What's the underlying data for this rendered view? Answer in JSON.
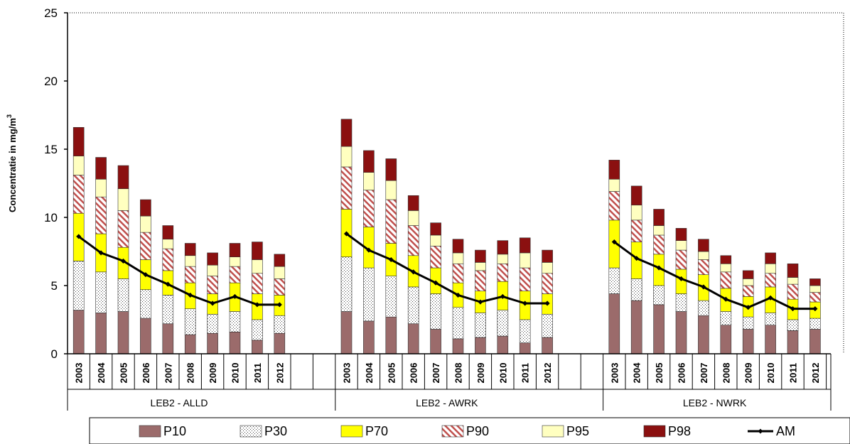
{
  "chart_data": {
    "type": "bar",
    "stacked": true,
    "ylabel": "Concentratie in mg/m",
    "ylabel_superscript": "3",
    "ylim": [
      0,
      25
    ],
    "yticks": [
      "0",
      "5",
      "10",
      "15",
      "20",
      "25"
    ],
    "groups": [
      {
        "label": "LEB2 - ALLD",
        "categories": [
          "2003",
          "2004",
          "2005",
          "2006",
          "2007",
          "2008",
          "2009",
          "2010",
          "2011",
          "2012"
        ],
        "P10": [
          3.2,
          3.0,
          3.1,
          2.6,
          2.2,
          1.4,
          1.5,
          1.6,
          1.0,
          1.5
        ],
        "P30": [
          6.8,
          6.0,
          5.5,
          4.7,
          4.3,
          3.3,
          2.9,
          3.1,
          2.5,
          2.8
        ],
        "P70": [
          10.3,
          8.8,
          7.8,
          6.9,
          6.1,
          5.2,
          4.4,
          5.2,
          4.4,
          4.3
        ],
        "P90": [
          13.1,
          11.5,
          10.5,
          8.9,
          7.7,
          6.4,
          5.7,
          6.4,
          5.9,
          5.5
        ],
        "P95": [
          14.5,
          12.8,
          12.1,
          10.1,
          8.4,
          7.2,
          6.5,
          7.1,
          6.9,
          6.4
        ],
        "P98": [
          16.6,
          14.4,
          13.8,
          11.3,
          9.4,
          8.1,
          7.4,
          8.1,
          8.2,
          7.3
        ],
        "AM": [
          8.6,
          7.4,
          6.8,
          5.8,
          5.1,
          4.3,
          3.7,
          4.2,
          3.6,
          3.6
        ]
      },
      {
        "label": "LEB2 - AWRK",
        "categories": [
          "2003",
          "2004",
          "2005",
          "2006",
          "2007",
          "2008",
          "2009",
          "2010",
          "2011",
          "2012"
        ],
        "P10": [
          3.1,
          2.4,
          2.7,
          2.2,
          1.8,
          1.1,
          1.2,
          1.3,
          0.8,
          1.2
        ],
        "P30": [
          7.1,
          6.3,
          5.7,
          4.9,
          4.4,
          3.4,
          3.0,
          3.2,
          2.5,
          2.9
        ],
        "P70": [
          10.6,
          9.3,
          8.1,
          7.2,
          6.3,
          5.2,
          4.6,
          5.3,
          4.6,
          4.4
        ],
        "P90": [
          13.7,
          12.0,
          11.3,
          9.4,
          7.9,
          6.6,
          6.1,
          6.6,
          6.3,
          5.9
        ],
        "P95": [
          15.2,
          13.3,
          12.7,
          10.5,
          8.7,
          7.4,
          6.7,
          7.3,
          7.4,
          6.7
        ],
        "P98": [
          17.2,
          14.9,
          14.3,
          11.6,
          9.6,
          8.4,
          7.6,
          8.3,
          8.5,
          7.6
        ],
        "AM": [
          8.8,
          7.6,
          6.9,
          6.0,
          5.2,
          4.3,
          3.8,
          4.2,
          3.7,
          3.7
        ]
      },
      {
        "label": "LEB2 - NWRK",
        "categories": [
          "2003",
          "2004",
          "2005",
          "2006",
          "2007",
          "2008",
          "2009",
          "2010",
          "2011",
          "2012"
        ],
        "P10": [
          4.4,
          3.9,
          3.6,
          3.1,
          2.8,
          2.1,
          1.8,
          2.1,
          1.7,
          1.8
        ],
        "P30": [
          6.3,
          5.5,
          5.0,
          4.4,
          3.9,
          3.1,
          2.7,
          3.0,
          2.5,
          2.6
        ],
        "P70": [
          9.8,
          8.2,
          7.3,
          6.2,
          5.8,
          4.8,
          4.2,
          4.9,
          4.0,
          3.8
        ],
        "P90": [
          11.9,
          9.8,
          8.7,
          7.6,
          6.9,
          6.0,
          5.0,
          5.9,
          5.1,
          4.5
        ],
        "P95": [
          12.8,
          10.9,
          9.4,
          8.3,
          7.5,
          6.6,
          5.5,
          6.6,
          5.6,
          5.0
        ],
        "P98": [
          14.2,
          12.3,
          10.6,
          9.2,
          8.4,
          7.2,
          6.1,
          7.4,
          6.6,
          5.5
        ],
        "AM": [
          8.2,
          7.0,
          6.3,
          5.5,
          4.9,
          4.0,
          3.4,
          4.1,
          3.3,
          3.3
        ]
      }
    ],
    "series": [
      {
        "name": "P10",
        "color": "#9b6b6b",
        "pattern": "solid"
      },
      {
        "name": "P30",
        "color": "#ffffff",
        "pattern": "dots"
      },
      {
        "name": "P70",
        "color": "#ffff00",
        "pattern": "solid"
      },
      {
        "name": "P90",
        "color": "#c0504d",
        "pattern": "hatch"
      },
      {
        "name": "P95",
        "color": "#ffffc0",
        "pattern": "solid"
      },
      {
        "name": "P98",
        "color": "#8b0000",
        "pattern": "solid"
      },
      {
        "name": "AM",
        "color": "#000000",
        "pattern": "line"
      }
    ],
    "legend_position": "bottom",
    "grid": false
  }
}
